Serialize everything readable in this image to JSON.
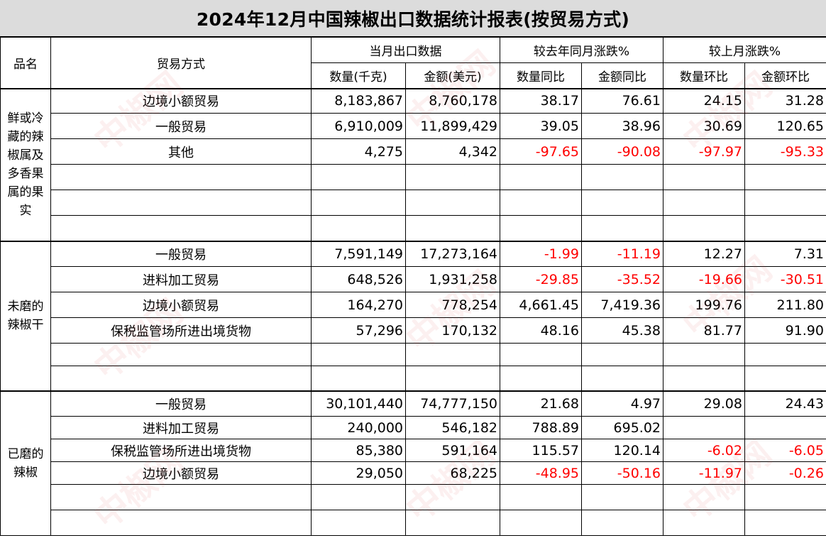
{
  "title": "2024年12月中国辣椒出口数据统计报表(按贸易方式)",
  "headers": {
    "product": "品名",
    "mode": "贸易方式",
    "group_current": "当月出口数据",
    "group_yoy": "较去年同月涨跌%",
    "group_mom": "较上月涨跌%",
    "qty": "数量(千克)",
    "amount": "金额(美元)",
    "qty_yoy": "数量同比",
    "amt_yoy": "金额同比",
    "qty_mom": "数量环比",
    "amt_mom": "金额环比"
  },
  "sections": [
    {
      "name": "鲜或冷藏的辣椒属及多香果属的果实",
      "rows": [
        {
          "mode": "边境小额贸易",
          "qty": "8,183,867",
          "amount": "8,760,178",
          "qty_yoy": "38.17",
          "amt_yoy": "76.61",
          "qty_mom": "24.15",
          "amt_mom": "31.28"
        },
        {
          "mode": "一般贸易",
          "qty": "6,910,009",
          "amount": "11,899,429",
          "qty_yoy": "39.05",
          "amt_yoy": "38.96",
          "qty_mom": "30.69",
          "amt_mom": "120.65"
        },
        {
          "mode": "其他",
          "qty": "4,275",
          "amount": "4,342",
          "qty_yoy": "-97.65",
          "amt_yoy": "-90.08",
          "qty_mom": "-97.97",
          "amt_mom": "-95.33"
        },
        {
          "mode": "",
          "qty": "",
          "amount": "",
          "qty_yoy": "",
          "amt_yoy": "",
          "qty_mom": "",
          "amt_mom": ""
        },
        {
          "mode": "",
          "qty": "",
          "amount": "",
          "qty_yoy": "",
          "amt_yoy": "",
          "qty_mom": "",
          "amt_mom": ""
        },
        {
          "mode": "",
          "qty": "",
          "amount": "",
          "qty_yoy": "",
          "amt_yoy": "",
          "qty_mom": "",
          "amt_mom": ""
        }
      ]
    },
    {
      "name": "未磨的辣椒干",
      "rows": [
        {
          "mode": "一般贸易",
          "qty": "7,591,149",
          "amount": "17,273,164",
          "qty_yoy": "-1.99",
          "amt_yoy": "-11.19",
          "qty_mom": "12.27",
          "amt_mom": "7.31"
        },
        {
          "mode": "进料加工贸易",
          "qty": "648,526",
          "amount": "1,931,258",
          "qty_yoy": "-29.85",
          "amt_yoy": "-35.52",
          "qty_mom": "-19.66",
          "amt_mom": "-30.51"
        },
        {
          "mode": "边境小额贸易",
          "qty": "164,270",
          "amount": "778,254",
          "qty_yoy": "4,661.45",
          "amt_yoy": "7,419.36",
          "qty_mom": "199.76",
          "amt_mom": "211.80"
        },
        {
          "mode": "保税监管场所进出境货物",
          "qty": "57,296",
          "amount": "170,132",
          "qty_yoy": "48.16",
          "amt_yoy": "45.38",
          "qty_mom": "81.77",
          "amt_mom": "91.90"
        },
        {
          "mode": "",
          "qty": "",
          "amount": "",
          "qty_yoy": "",
          "amt_yoy": "",
          "qty_mom": "",
          "amt_mom": ""
        },
        {
          "mode": "",
          "qty": "",
          "amount": "",
          "qty_yoy": "",
          "amt_yoy": "",
          "qty_mom": "",
          "amt_mom": ""
        }
      ]
    },
    {
      "name": "已磨的辣椒",
      "rows": [
        {
          "mode": "一般贸易",
          "qty": "30,101,440",
          "amount": "74,777,150",
          "qty_yoy": "21.68",
          "amt_yoy": "4.97",
          "qty_mom": "29.08",
          "amt_mom": "24.43"
        },
        {
          "mode": "进料加工贸易",
          "qty": "240,000",
          "amount": "546,182",
          "qty_yoy": "788.89",
          "amt_yoy": "695.02",
          "qty_mom": "",
          "amt_mom": ""
        },
        {
          "mode": "保税监管场所进出境货物",
          "qty": "85,380",
          "amount": "591,164",
          "qty_yoy": "115.57",
          "amt_yoy": "120.14",
          "qty_mom": "-6.02",
          "amt_mom": "-6.05"
        },
        {
          "mode": "边境小额贸易",
          "qty": "29,050",
          "amount": "68,225",
          "qty_yoy": "-48.95",
          "amt_yoy": "-50.16",
          "qty_mom": "-11.97",
          "amt_mom": "-0.26"
        },
        {
          "mode": "",
          "qty": "",
          "amount": "",
          "qty_yoy": "",
          "amt_yoy": "",
          "qty_mom": "",
          "amt_mom": ""
        },
        {
          "mode": "",
          "qty": "",
          "amount": "",
          "qty_yoy": "",
          "amt_yoy": "",
          "qty_mom": "",
          "amt_mom": ""
        }
      ]
    }
  ],
  "colors": {
    "negative": "#ff0000",
    "title_bg": "#dcdcdc"
  },
  "watermark": "中椒网"
}
